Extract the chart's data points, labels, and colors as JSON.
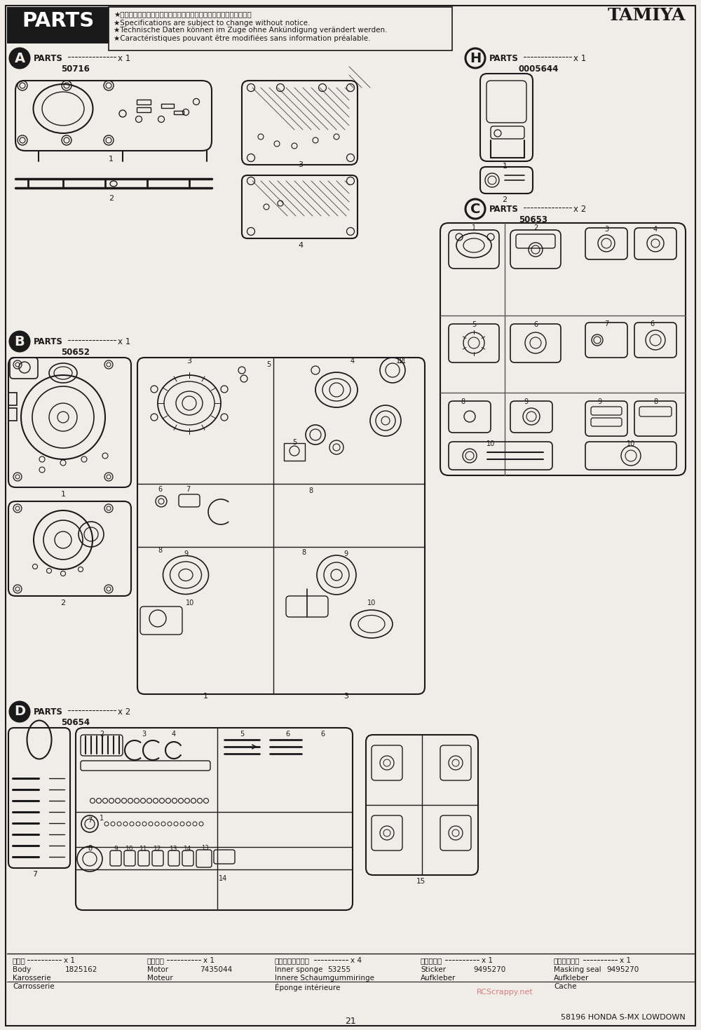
{
  "page_title": "TAMIYA",
  "section_title": "PARTS",
  "page_number": "21",
  "footer_text": "58196 HONDA S-MX LOWDOWN",
  "notice_lines": [
    "★製品改良のためキットは予告なく仕様を変更することがあります。",
    "★Specifications are subject to change without notice.",
    "★Technische Daten können im Zuge ohne Ankündigung verändert werden.",
    "★Caractéristiques pouvant être modifiées sans information préalable."
  ],
  "bg_color": "#f0ede8",
  "line_color": "#1a1a1a"
}
